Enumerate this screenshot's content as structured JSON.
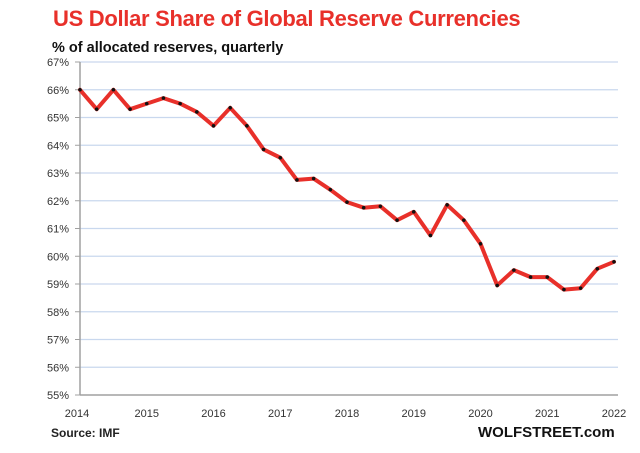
{
  "chart_data": {
    "type": "line",
    "title": "US Dollar Share of Global  Reserve Currencies",
    "subtitle": "% of allocated reserves, quarterly",
    "xlabel": "",
    "ylabel": "% of allocated reserves",
    "ylim": [
      55,
      67
    ],
    "xlim": [
      2014,
      2022
    ],
    "y_ticks": [
      "55%",
      "56%",
      "57%",
      "58%",
      "59%",
      "60%",
      "61%",
      "62%",
      "63%",
      "64%",
      "65%",
      "66%",
      "67%"
    ],
    "y_tick_values": [
      55,
      56,
      57,
      58,
      59,
      60,
      61,
      62,
      63,
      64,
      65,
      66,
      67
    ],
    "x_ticks": [
      "2014",
      "2015",
      "2016",
      "2017",
      "2018",
      "2019",
      "2020",
      "2021",
      "2022"
    ],
    "x_tick_values": [
      2014,
      2015,
      2016,
      2017,
      2018,
      2019,
      2020,
      2021,
      2022
    ],
    "grid": "horizontal",
    "legend": "none",
    "series": [
      {
        "name": "USD share",
        "color": "#e8302a",
        "marker_color": "#111111",
        "x": [
          2014.0,
          2014.25,
          2014.5,
          2014.75,
          2015.0,
          2015.25,
          2015.5,
          2015.75,
          2016.0,
          2016.25,
          2016.5,
          2016.75,
          2017.0,
          2017.25,
          2017.5,
          2017.75,
          2018.0,
          2018.25,
          2018.5,
          2018.75,
          2019.0,
          2019.25,
          2019.5,
          2019.75,
          2020.0,
          2020.25,
          2020.5,
          2020.75,
          2021.0,
          2021.25,
          2021.5,
          2021.75,
          2022.0
        ],
        "values": [
          66.0,
          65.3,
          66.0,
          65.3,
          65.5,
          65.7,
          65.5,
          65.2,
          64.7,
          65.35,
          64.7,
          63.85,
          63.55,
          62.75,
          62.8,
          62.4,
          61.95,
          61.75,
          61.8,
          61.3,
          61.6,
          60.75,
          61.85,
          61.3,
          60.45,
          58.95,
          59.5,
          59.25,
          59.25,
          58.8,
          58.85,
          59.55,
          59.8
        ]
      }
    ],
    "source": "Source: IMF",
    "brand": "WOLFSTREET.com"
  },
  "colors": {
    "title": "#e8302a",
    "line": "#e8302a",
    "grid": "#c9d8ee",
    "axis": "#a0a0a0"
  }
}
